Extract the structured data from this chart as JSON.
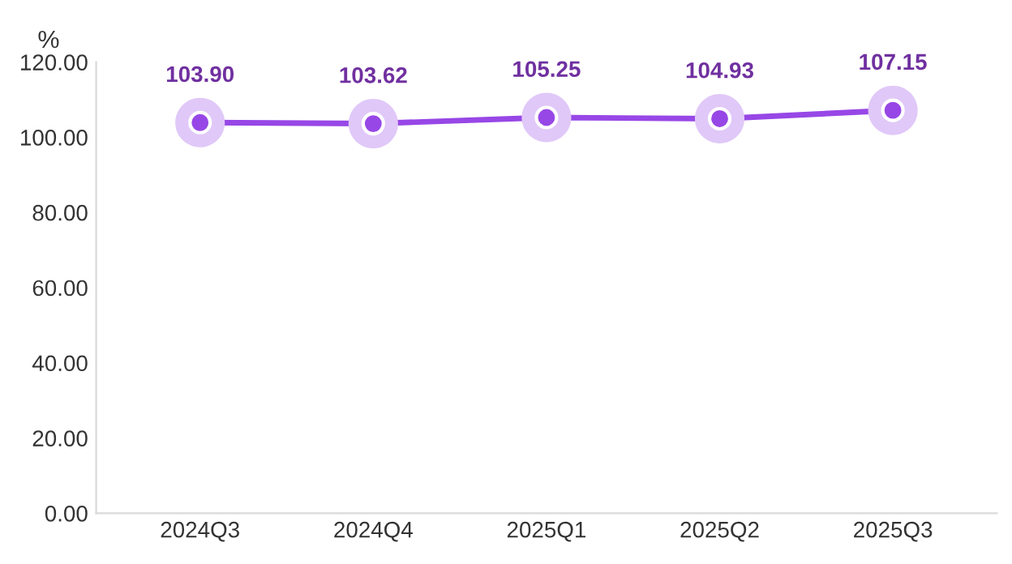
{
  "chart_data": {
    "type": "line",
    "ylabel": "%",
    "categories": [
      "2024Q3",
      "2024Q4",
      "2025Q1",
      "2025Q2",
      "2025Q3"
    ],
    "series": [
      {
        "color": "#9747e6",
        "values": [
          103.9,
          103.62,
          105.25,
          104.93,
          107.15
        ],
        "value_labels": [
          "103.90",
          "103.62",
          "105.25",
          "104.93",
          "107.15"
        ]
      }
    ],
    "ylim": [
      0,
      120
    ],
    "yticks": [
      {
        "value": 0,
        "label": "0.00"
      },
      {
        "value": 20,
        "label": "20.00"
      },
      {
        "value": 40,
        "label": "40.00"
      },
      {
        "value": 60,
        "label": "60.00"
      },
      {
        "value": 80,
        "label": "80.00"
      },
      {
        "value": 100,
        "label": "100.00"
      },
      {
        "value": 120,
        "label": "120.00"
      }
    ],
    "marker": "circle",
    "line_style": "solid",
    "grid": false,
    "legend": false
  }
}
